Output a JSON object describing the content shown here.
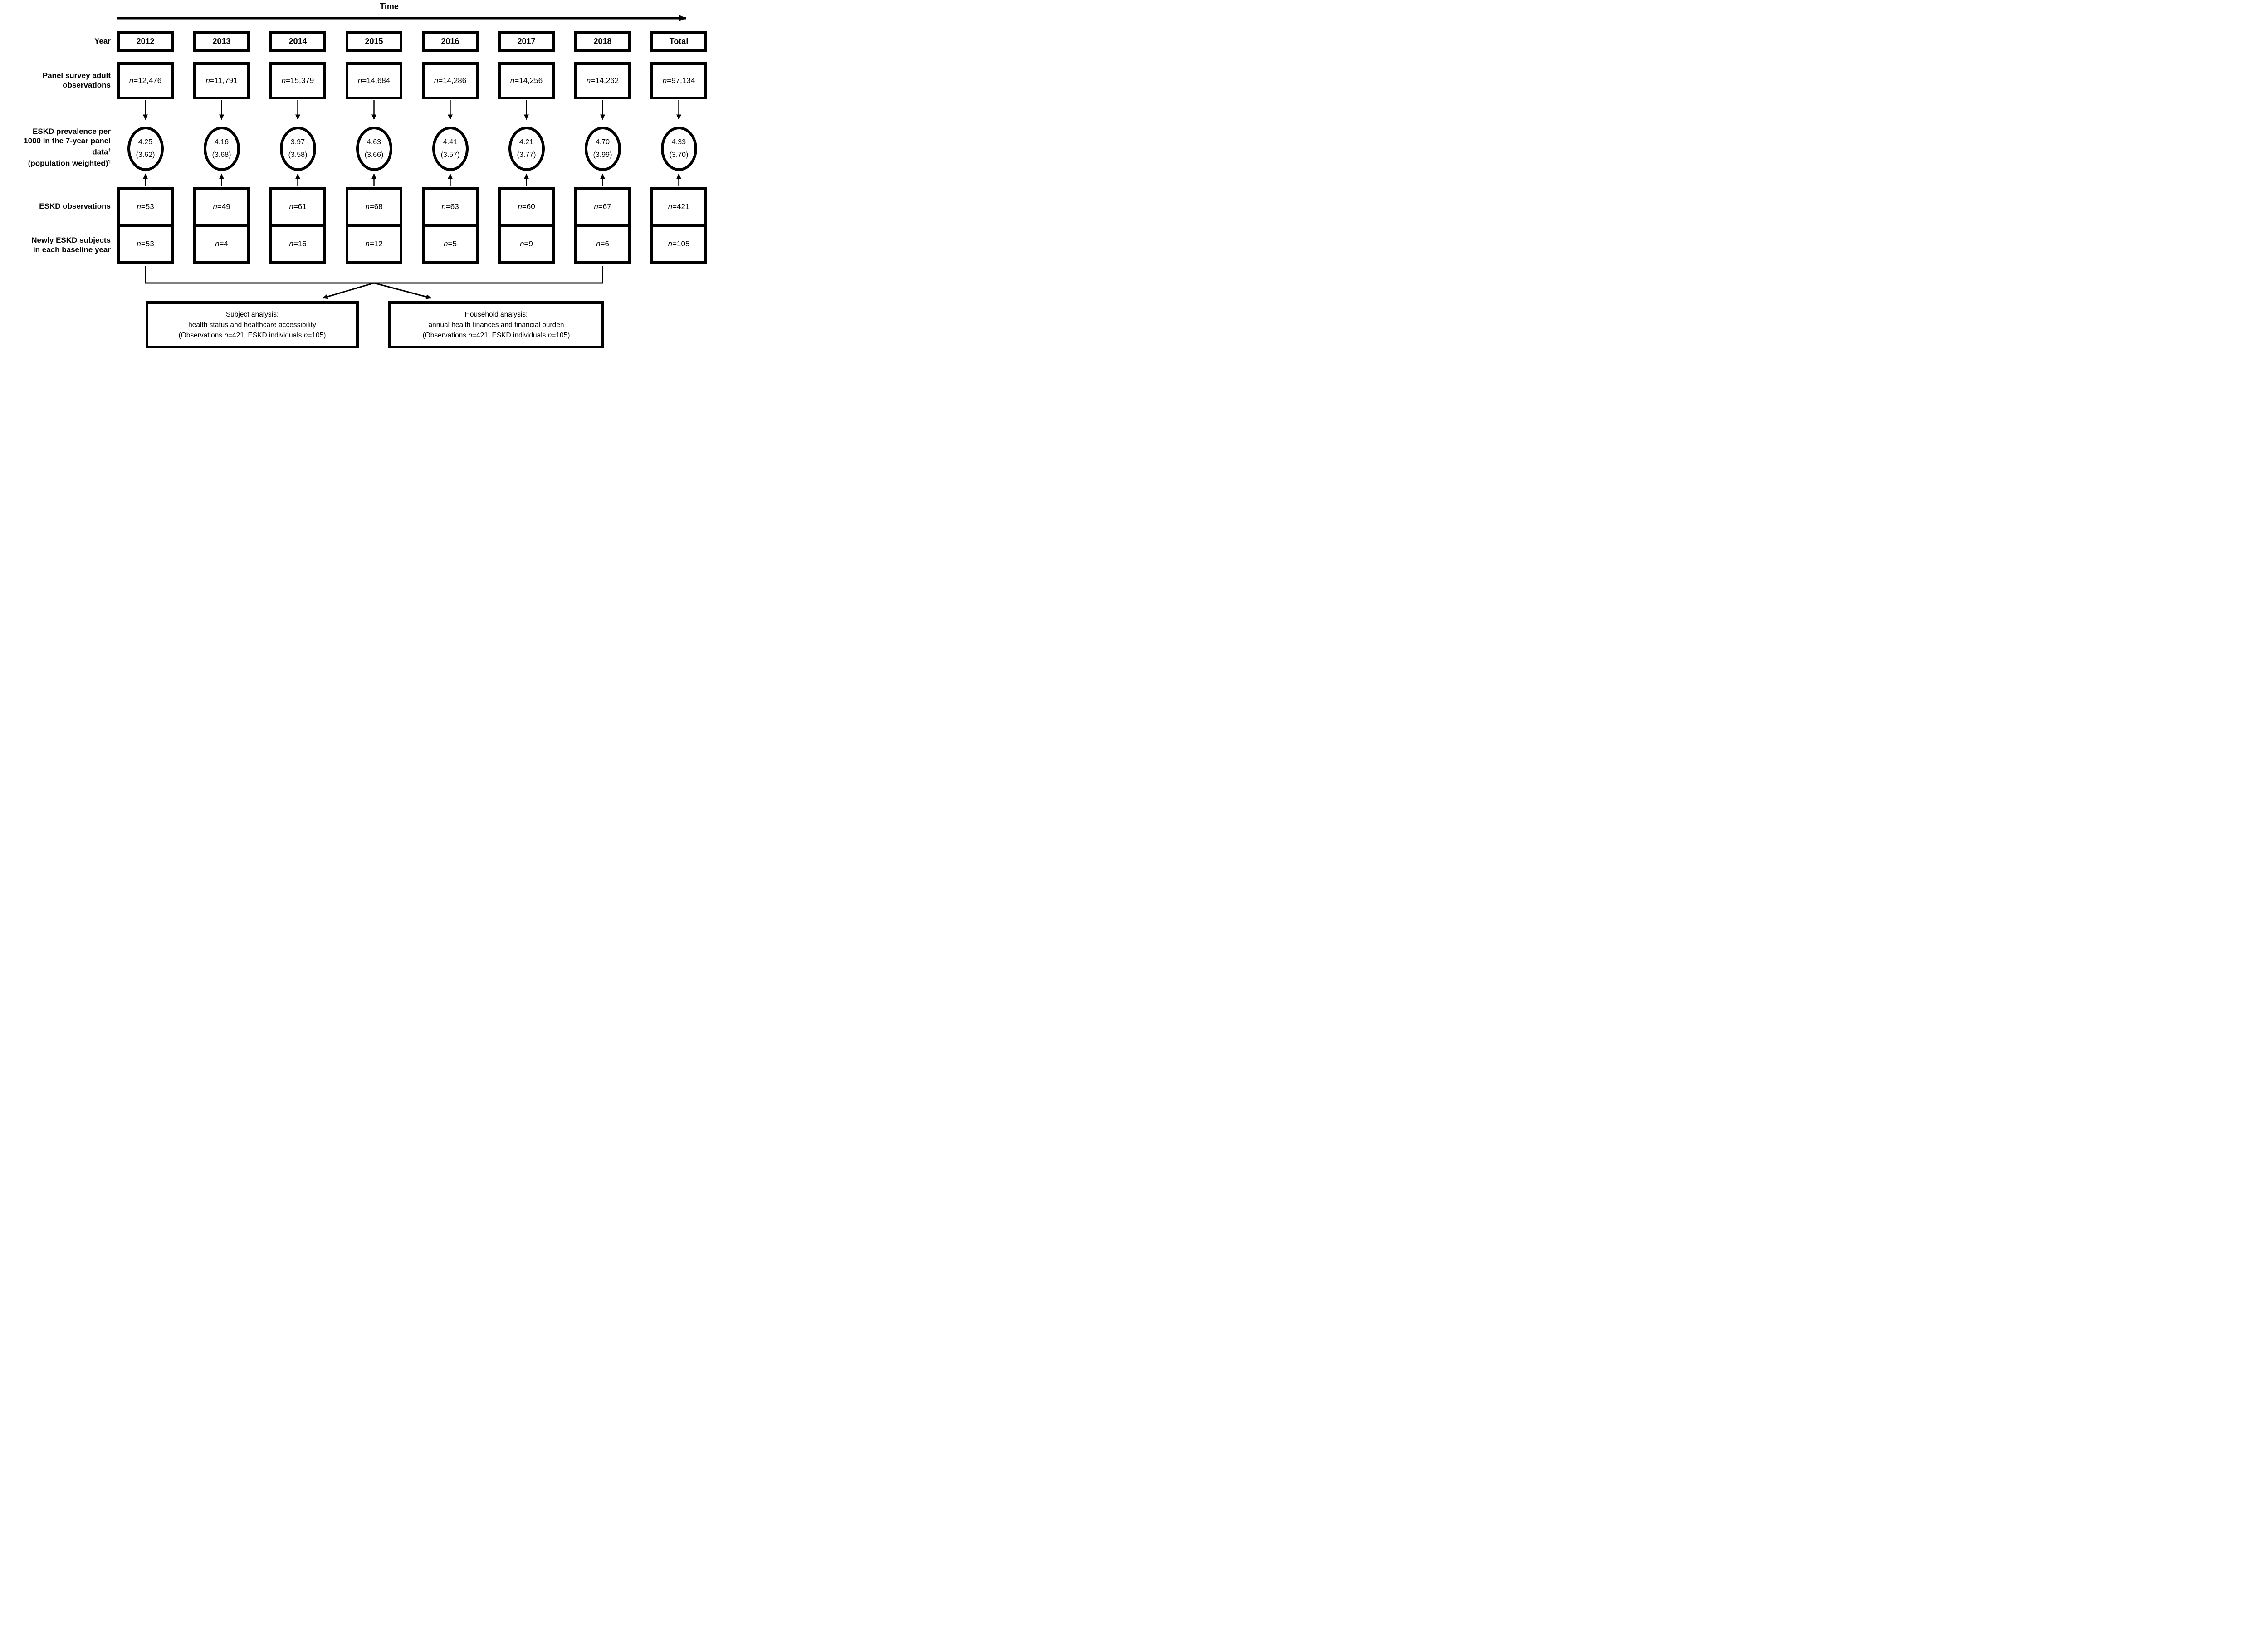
{
  "title": "Time",
  "labels": {
    "year": "Year",
    "panel": [
      "Panel survey adult",
      "observations"
    ],
    "prevalence": [
      "ESKD prevalence per",
      "1000 in the 7-year panel",
      "data†",
      "(population weighted)¶"
    ],
    "eskd_obs": "ESKD observations",
    "newly": [
      "Newly ESKD subjects",
      "in each baseline year"
    ]
  },
  "columns": [
    {
      "year": "2012",
      "panel_n": "n=12,476",
      "prevalence": "4.25",
      "prevalence_sd": "(3.62)",
      "eskd_obs_n": "n=53",
      "newly_n": "n=53"
    },
    {
      "year": "2013",
      "panel_n": "n=11,791",
      "prevalence": "4.16",
      "prevalence_sd": "(3.68)",
      "eskd_obs_n": "n=49",
      "newly_n": "n=4"
    },
    {
      "year": "2014",
      "panel_n": "n=15,379",
      "prevalence": "3.97",
      "prevalence_sd": "(3.58)",
      "eskd_obs_n": "n=61",
      "newly_n": "n=16"
    },
    {
      "year": "2015",
      "panel_n": "n=14,684",
      "prevalence": "4.63",
      "prevalence_sd": "(3.66)",
      "eskd_obs_n": "n=68",
      "newly_n": "n=12"
    },
    {
      "year": "2016",
      "panel_n": "n=14,286",
      "prevalence": "4.41",
      "prevalence_sd": "(3.57)",
      "eskd_obs_n": "n=63",
      "newly_n": "n=5"
    },
    {
      "year": "2017",
      "panel_n": "n=14,256",
      "prevalence": "4.21",
      "prevalence_sd": "(3.77)",
      "eskd_obs_n": "n=60",
      "newly_n": "n=9"
    },
    {
      "year": "2018",
      "panel_n": "n=14,262",
      "prevalence": "4.70",
      "prevalence_sd": "(3.99)",
      "eskd_obs_n": "n=67",
      "newly_n": "n=6"
    },
    {
      "year": "Total",
      "panel_n": "n=97,134",
      "prevalence": "4.33",
      "prevalence_sd": "(3.70)",
      "eskd_obs_n": "n=421",
      "newly_n": "n=105"
    }
  ],
  "bottom_boxes": [
    {
      "lines": [
        "Subject analysis:",
        "health status and healthcare accessibility",
        "(Observations n=421, ESKD individuals n=105)"
      ]
    },
    {
      "lines": [
        "Household analysis:",
        "annual health finances and financial burden",
        "(Observations n=421, ESKD individuals n=105)"
      ]
    }
  ],
  "colors": {
    "ink": "#000000",
    "background": "#ffffff"
  }
}
